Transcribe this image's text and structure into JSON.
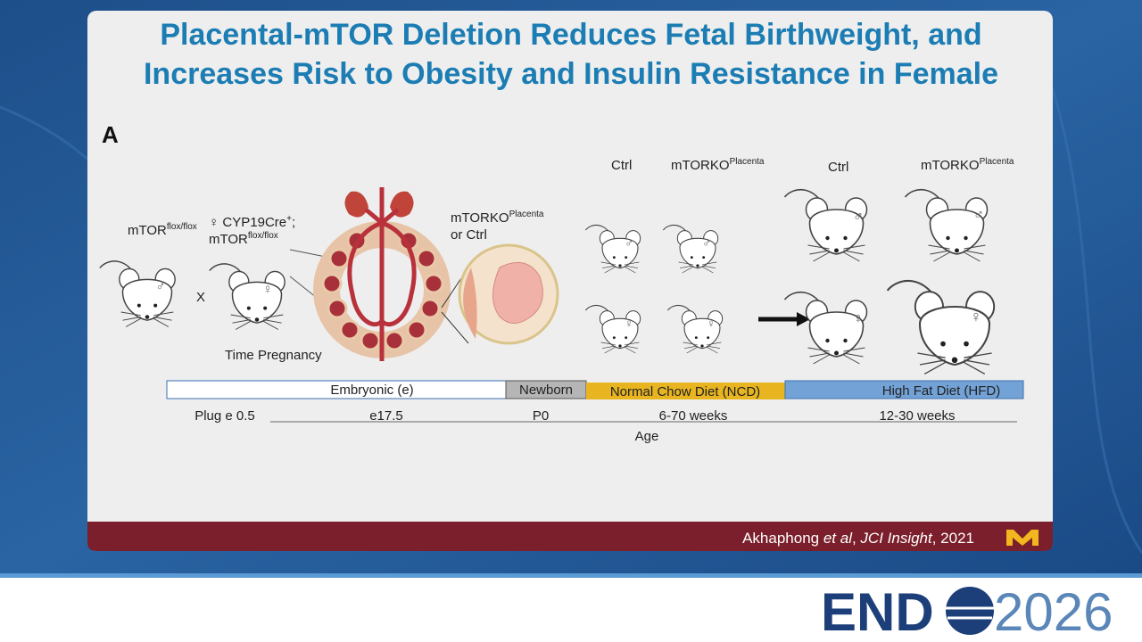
{
  "title": {
    "line1": "Placental-mTOR Deletion Reduces Fetal Birthweight, and",
    "line2": "Increases Risk to Obesity and Insulin Resistance in Female"
  },
  "panel_label": "A",
  "symbols": {
    "male": "♂",
    "female": "♀"
  },
  "breeding": {
    "male_base": "mTOR",
    "male_sup": "flox/flox",
    "female_line1": "♀ CYP19Cre",
    "female_line1_sup": "+",
    "female_line1_end": ";",
    "female_line2_base": "mTOR",
    "female_line2_sup": "flox/flox",
    "cross": "X",
    "caption": "Time Pregnancy"
  },
  "offspring": {
    "base": "mTORKO",
    "sup": "Placenta",
    "line2": "or Ctrl"
  },
  "groups": {
    "ctrl": "Ctrl",
    "ko_base": "mTORKO",
    "ko_sup": "Placenta"
  },
  "timeline": {
    "phases": [
      "Embryonic (e)",
      "Newborn",
      "Normal Chow Diet (NCD)",
      "High Fat Diet (HFD)"
    ],
    "timepoints": [
      "Plug e 0.5",
      "e17.5",
      "P0",
      "6-70 weeks",
      "12-30 weeks"
    ],
    "axis_label": "Age"
  },
  "citation": {
    "author": "Akhaphong",
    "etal": " et al",
    "sep": ", ",
    "journal": "JCI Insight",
    "year": ", 2021"
  },
  "logo": {
    "left": "END",
    "right": "2026"
  }
}
